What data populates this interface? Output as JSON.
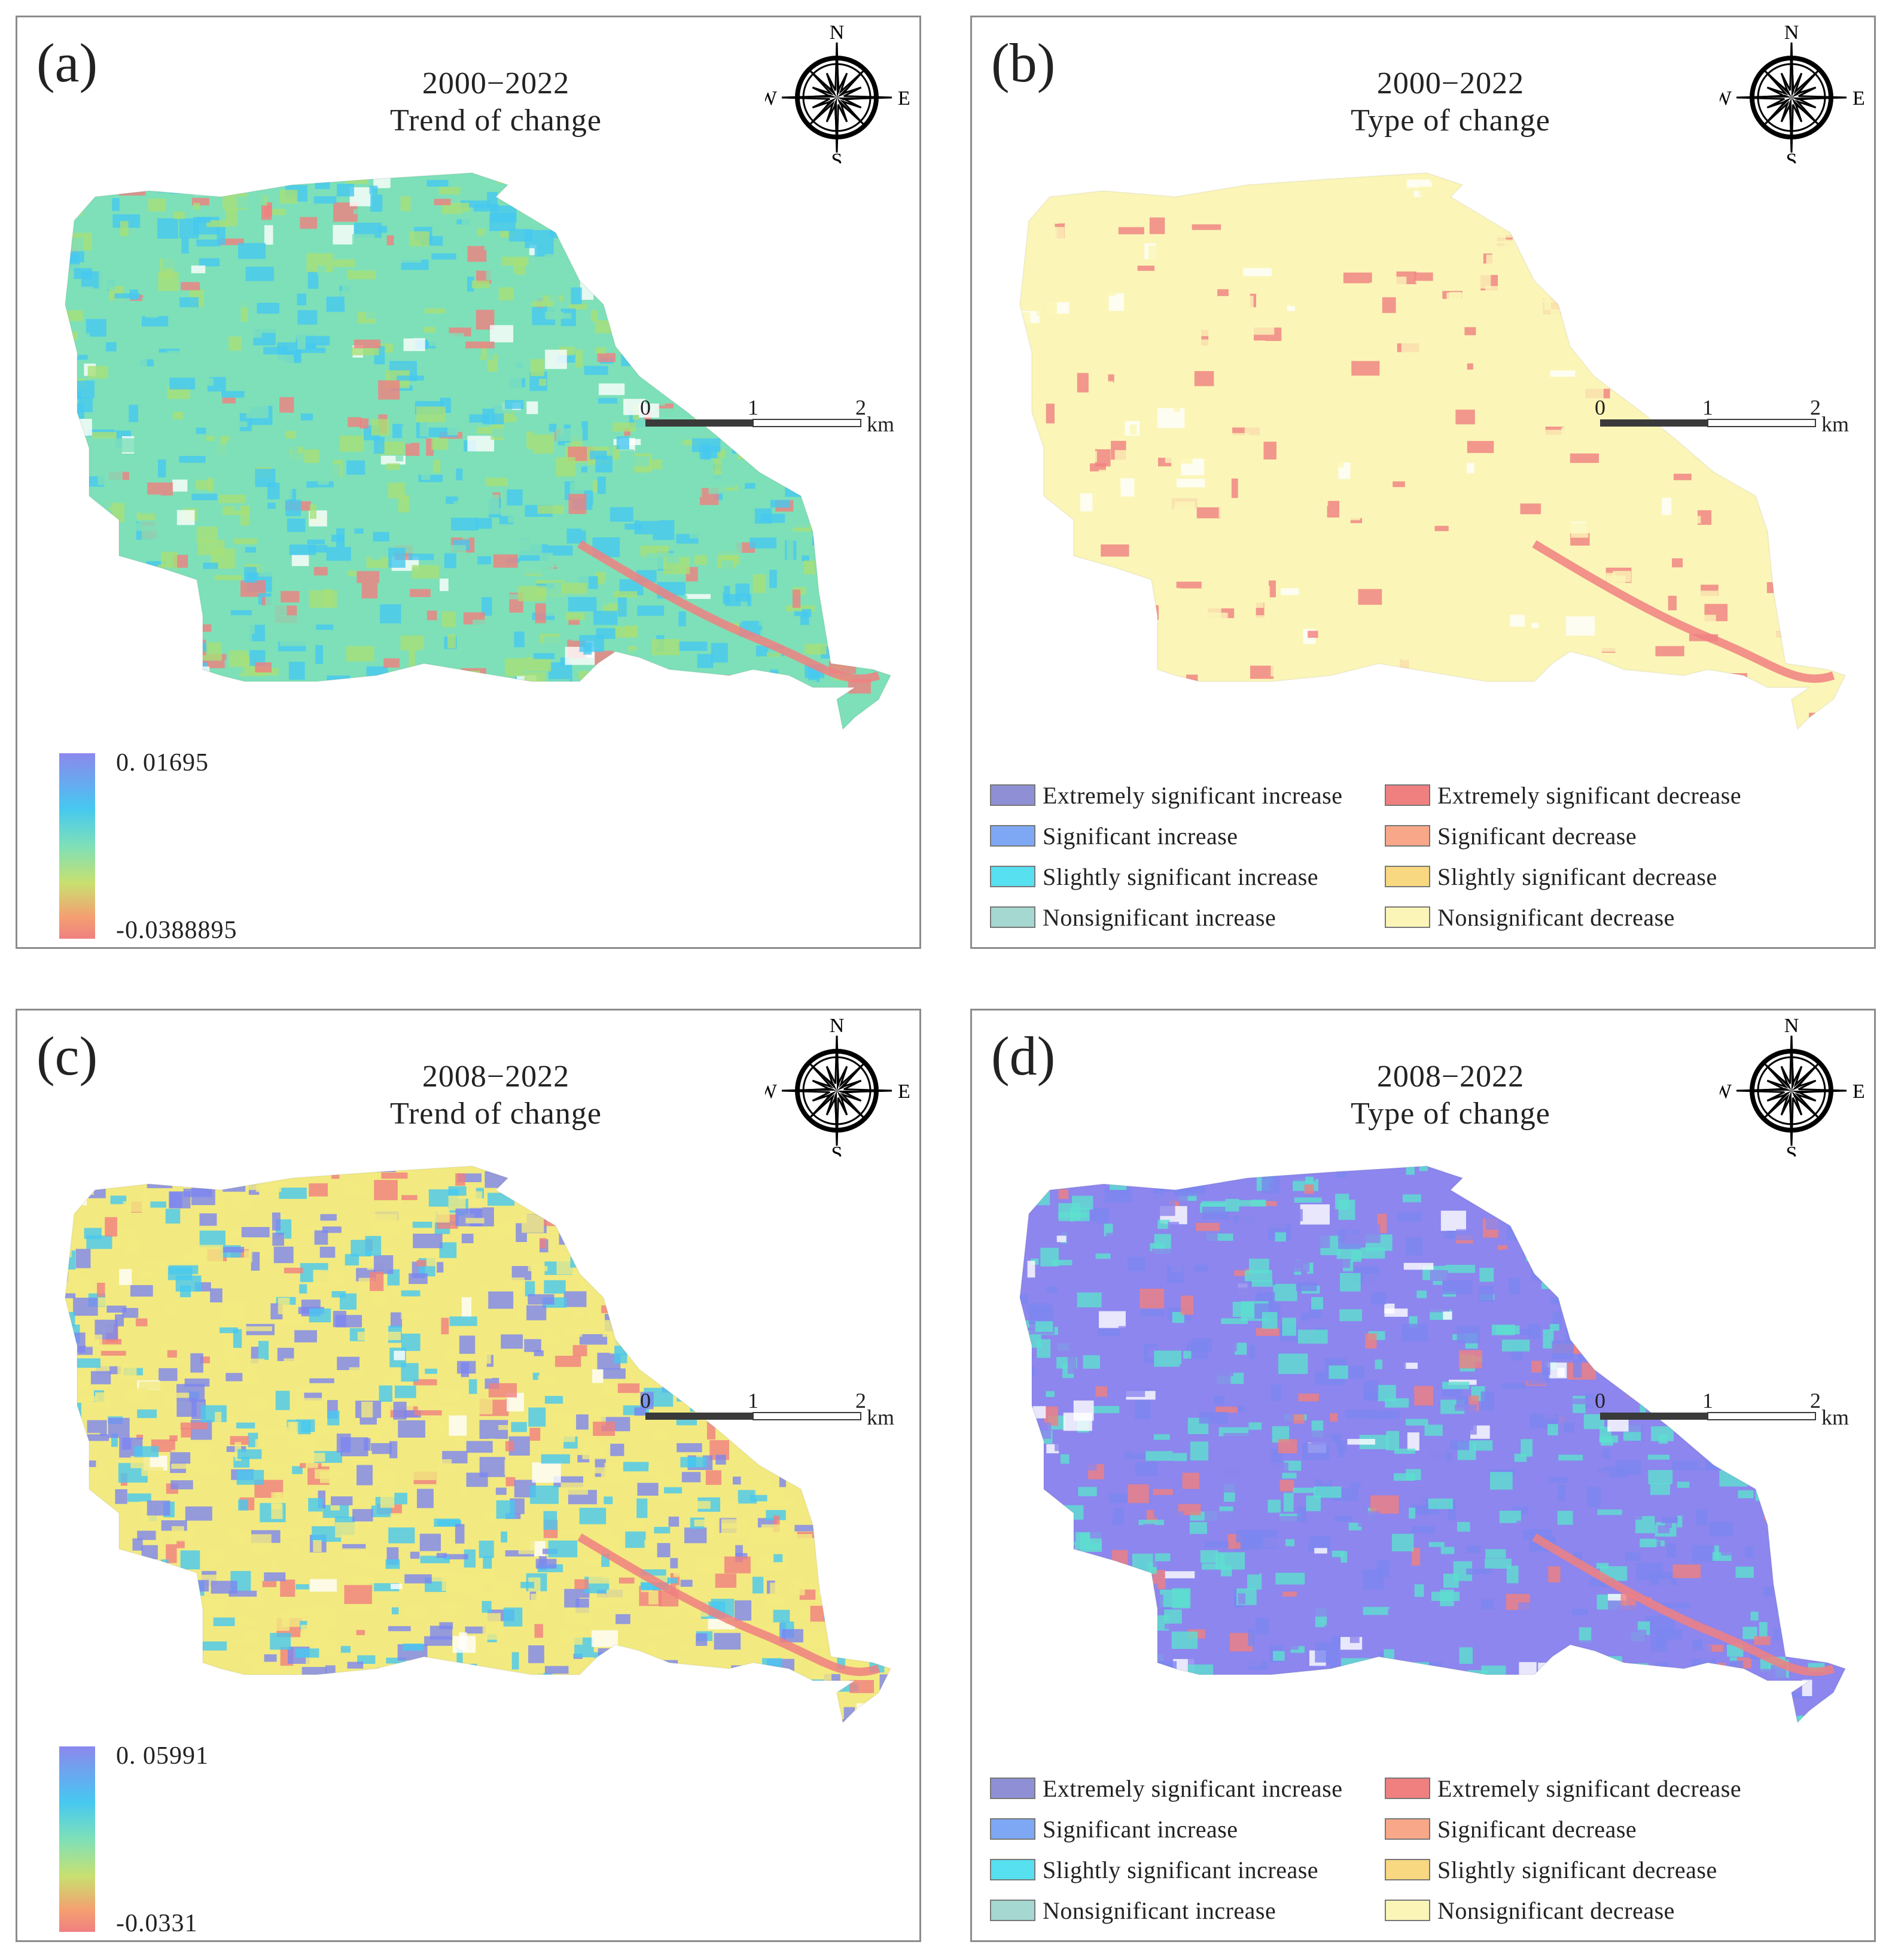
{
  "panels": [
    {
      "id": "a",
      "label": "(a)",
      "period": "2000−2022",
      "subtitle": "Trend of change",
      "kind": "trend",
      "colorbar": {
        "max": "0. 01695",
        "min": "-0.0388895"
      },
      "dominant": [
        "#7ee0b8",
        "#46c8f0",
        "#a8e078"
      ],
      "accent": "#f08080"
    },
    {
      "id": "b",
      "label": "(b)",
      "period": "2000−2022",
      "subtitle": "Type of change",
      "kind": "type",
      "dominant": [
        "#fbf6b8",
        "#fbf6b8",
        "#fbf6b8"
      ],
      "accent": "#f08080"
    },
    {
      "id": "c",
      "label": "(c)",
      "period": "2008−2022",
      "subtitle": "Trend of change",
      "kind": "trend",
      "colorbar": {
        "max": "0. 05991",
        "min": "-0.0331"
      },
      "dominant": [
        "#f2ea80",
        "#7c86f0",
        "#46c8f0"
      ],
      "accent": "#f08080"
    },
    {
      "id": "d",
      "label": "(d)",
      "period": "2008−2022",
      "subtitle": "Type of change",
      "kind": "type",
      "dominant": [
        "#8c86ee",
        "#5ee0d0",
        "#7c86f0"
      ],
      "accent": "#f08080"
    }
  ],
  "compass": {
    "n": "N",
    "s": "S",
    "e": "E",
    "w": "W"
  },
  "scale_bar": {
    "ticks": [
      "0",
      "1",
      "2"
    ],
    "unit": "km"
  },
  "legend": [
    {
      "label": "Extremely significant increase",
      "color": "#8f8fd6"
    },
    {
      "label": "Extremely significant decrease",
      "color": "#f08080"
    },
    {
      "label": "Significant increase",
      "color": "#7ea8f4"
    },
    {
      "label": "Significant decrease",
      "color": "#f8a888"
    },
    {
      "label": "Slightly significant increase",
      "color": "#56e0f0"
    },
    {
      "label": "Slightly significant decrease",
      "color": "#f8d880"
    },
    {
      "label": "Nonsignificant increase",
      "color": "#a4d8d0"
    },
    {
      "label": "Nonsignificant decrease",
      "color": "#fbf6b8"
    }
  ]
}
